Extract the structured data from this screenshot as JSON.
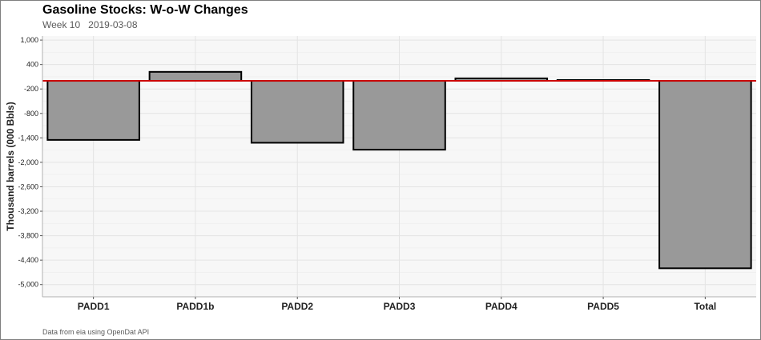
{
  "title": "Gasoline Stocks: W-o-W Changes",
  "subtitle": "Week 10   2019-03-08",
  "caption": "Data from eia using OpenDat API",
  "chart_data": {
    "type": "bar",
    "categories": [
      "PADD1",
      "PADD1b",
      "PADD2",
      "PADD3",
      "PADD4",
      "PADD5",
      "Total"
    ],
    "values": [
      -1450,
      220,
      -1520,
      -1690,
      60,
      20,
      -4600
    ],
    "ylabel": "Thousand barrels (000 Bbls)",
    "ylim": [
      -5300,
      1100
    ],
    "yticks": [
      1000,
      400,
      -200,
      -800,
      -1400,
      -2000,
      -2600,
      -3200,
      -3800,
      -4400,
      -5000
    ],
    "ytick_labels": [
      "1,000",
      "400",
      "-200",
      "-800",
      "-1,400",
      "-2,000",
      "-2,600",
      "-3,200",
      "-3,800",
      "-4,400",
      "-5,000"
    ],
    "reference_line": 0,
    "grid": true,
    "colors": {
      "bar_fill": "#999999",
      "bar_stroke": "#000000",
      "reference_line": "#cc0000",
      "panel": "#f7f7f7",
      "grid": "#e4e4e4"
    }
  }
}
